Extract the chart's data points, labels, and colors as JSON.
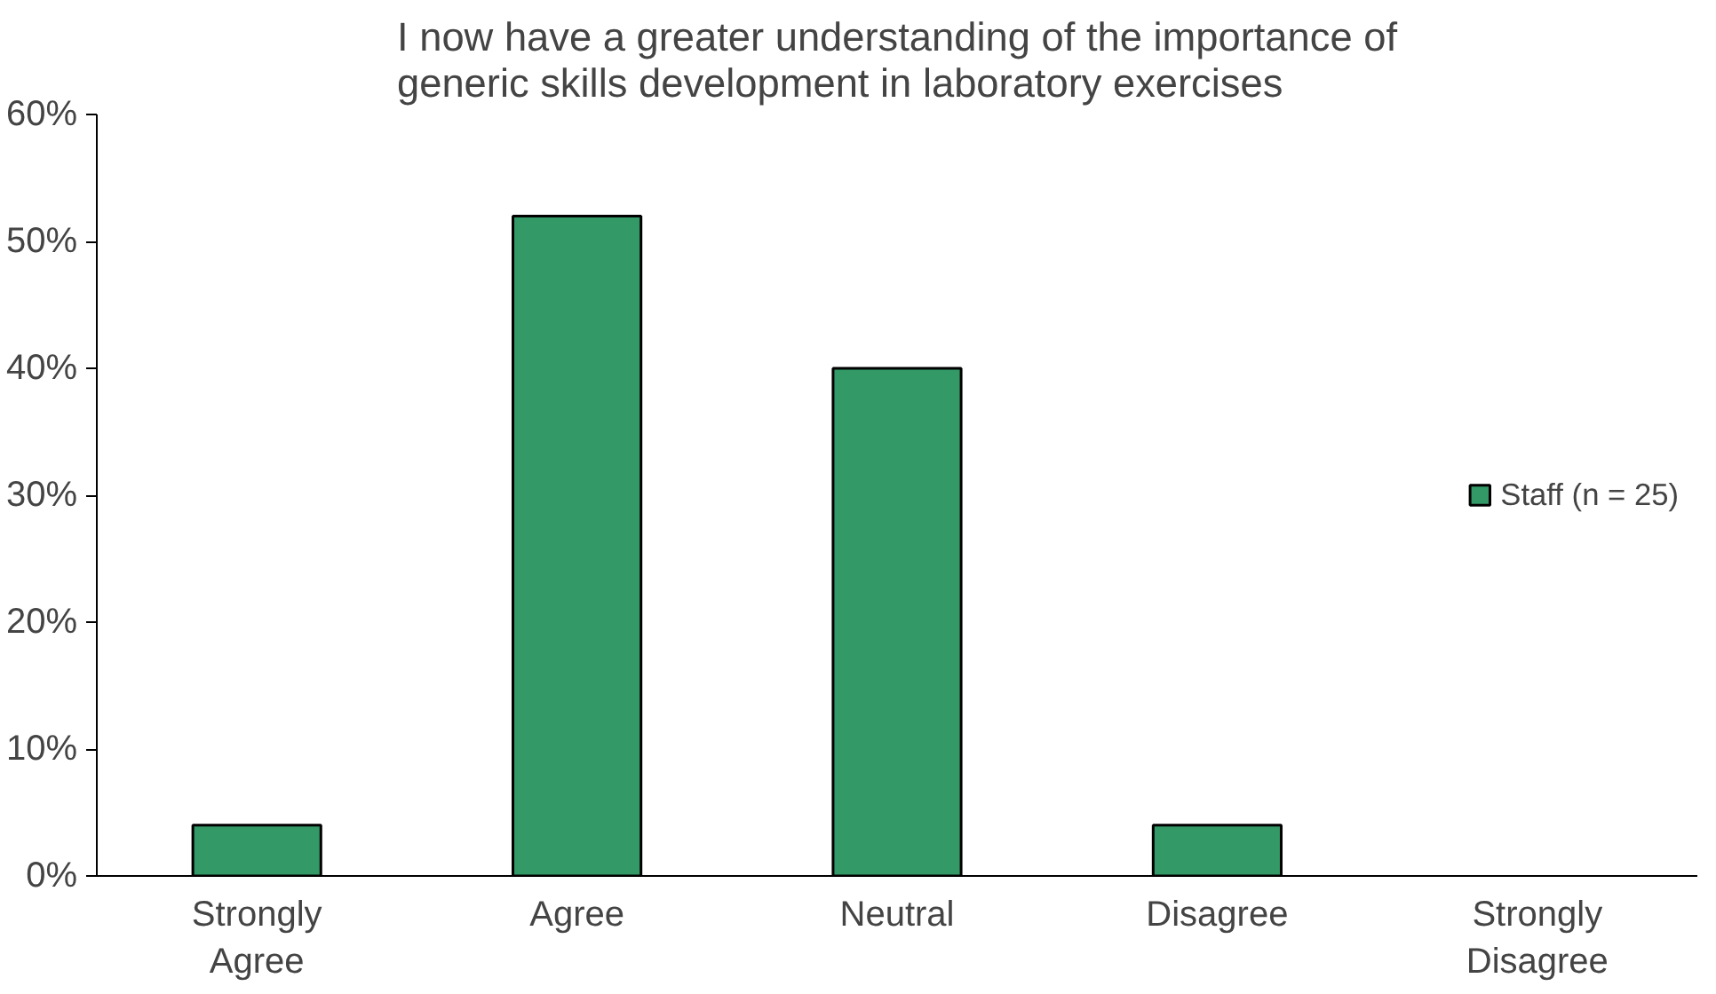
{
  "chart_data": {
    "type": "bar",
    "title": "I now have a greater understanding of the importance of\ngeneric skills development in laboratory exercises",
    "categories": [
      "Strongly\nAgree",
      "Agree",
      "Neutral",
      "Disagree",
      "Strongly\nDisagree"
    ],
    "series": [
      {
        "name": "Staff (n = 25)",
        "color": "#339966",
        "values": [
          4,
          52,
          40,
          4,
          0
        ]
      }
    ],
    "ylim": [
      0,
      60
    ],
    "yticks": [
      {
        "value": 0,
        "label": "0%"
      },
      {
        "value": 10,
        "label": "10%"
      },
      {
        "value": 20,
        "label": "20%"
      },
      {
        "value": 30,
        "label": "30%"
      },
      {
        "value": 40,
        "label": "40%"
      },
      {
        "value": 50,
        "label": "50%"
      },
      {
        "value": 60,
        "label": "60%"
      }
    ],
    "grid": false,
    "legend": "right"
  }
}
